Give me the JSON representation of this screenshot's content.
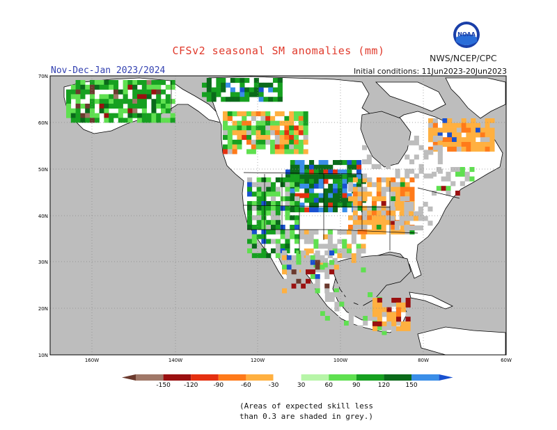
{
  "title": "CFSv2 seasonal SM anomalies (mm)",
  "agency": "NWS/NCEP/CPC",
  "logo_text": "NOAA",
  "season": "Nov-Dec-Jan 2023/2024",
  "initial_conditions": "Initial conditions: 11Jun2023-20Jun2023",
  "lat_labels": [
    "70N",
    "60N",
    "50N",
    "40N",
    "30N",
    "20N",
    "10N"
  ],
  "lon_labels": [
    "160W",
    "140W",
    "120W",
    "100W",
    "80W",
    "60W"
  ],
  "legend": {
    "labels": [
      "-150",
      "-120",
      "-90",
      "-60",
      "-30",
      "30",
      "60",
      "90",
      "120",
      "150"
    ],
    "colors": [
      "#6b3a2e",
      "#a07868",
      "#9a1010",
      "#e53010",
      "#ff7a1a",
      "#ffb040",
      "#ffffff",
      "#b7f5a8",
      "#5fe050",
      "#16a020",
      "#0a6a1a",
      "#3a8ee8",
      "#1850d0"
    ]
  },
  "note_line1": "(Areas of expected skill less",
  "note_line2": "than 0.3 are shaded in grey.)",
  "colors": {
    "title": "#e0392b",
    "season": "#3240b0",
    "ocean_grey": "#bdbdbd",
    "land": "#ffffff"
  }
}
